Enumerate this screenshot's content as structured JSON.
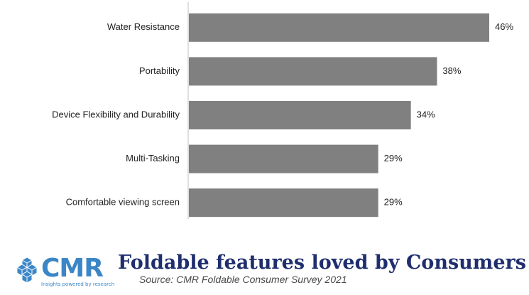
{
  "chart_data": {
    "type": "bar",
    "orientation": "horizontal",
    "categories": [
      "Water Resistance",
      "Portability",
      "Device Flexibility and Durability",
      "Multi-Tasking",
      "Comfortable viewing screen"
    ],
    "values": [
      46,
      38,
      34,
      29,
      29
    ],
    "data_labels": [
      "46%",
      "38%",
      "34%",
      "29%",
      "29%"
    ],
    "xlim": [
      0,
      46
    ],
    "bar_color": "#808080",
    "grid": false,
    "legend": "none"
  },
  "footer": {
    "logo_text": "CMR",
    "logo_tagline": "Insights powered by research",
    "title": "Foldable features loved by Consumers",
    "subtitle": "Source: CMR Foldable Consumer Survey 2021"
  },
  "colors": {
    "bar": "#808080",
    "title": "#1f2e6e",
    "logo": "#3b86c6",
    "axis": "#bfbfbf"
  }
}
